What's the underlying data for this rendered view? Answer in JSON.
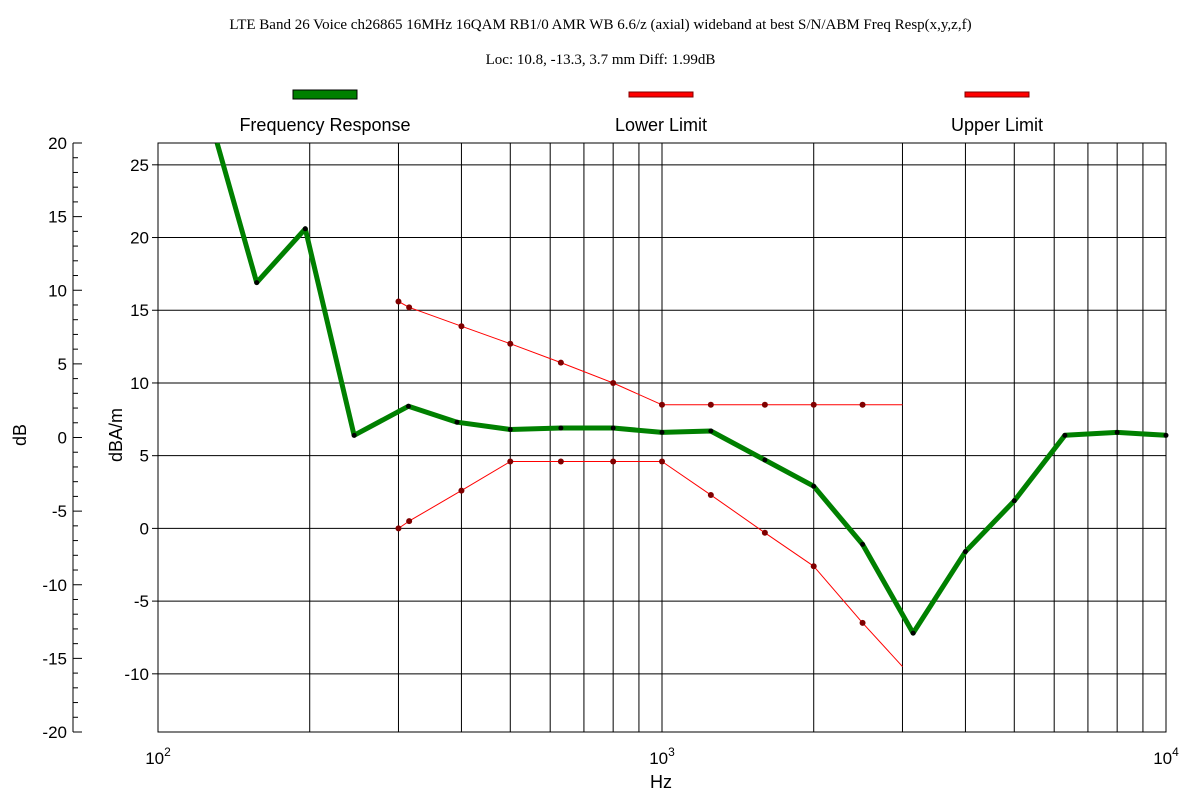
{
  "chart_data": {
    "type": "line",
    "title": "LTE Band 26 Voice ch26865 16MHz 16QAM RB1/0 AMR WB 6.6/z (axial) wideband at best S/N/ABM Freq Resp(x,y,z,f)",
    "subtitle": "Loc: 10.8, -13.3, 3.7 mm Diff: 1.99dB",
    "xlabel": "Hz",
    "ylabel_outer": "dB",
    "ylabel_inner": "dBA/m",
    "x_scale": "log",
    "xlim": [
      100,
      10000
    ],
    "ylim_outer": [
      -20,
      20
    ],
    "ylim_inner": [
      -14,
      26.5
    ],
    "x_tick_labels": [
      {
        "value": 100,
        "base": "10",
        "exp": "2"
      },
      {
        "value": 1000,
        "base": "10",
        "exp": "3"
      },
      {
        "value": 10000,
        "base": "10",
        "exp": "4"
      }
    ],
    "outer_ticks": [
      20,
      15,
      10,
      5,
      0,
      -5,
      -10,
      -15,
      -20
    ],
    "inner_ticks": [
      25,
      20,
      15,
      10,
      5,
      0,
      -5,
      -10
    ],
    "grid": true,
    "legend_position": "top",
    "series": [
      {
        "name": "Frequency Response",
        "color": "#008000",
        "width": 5,
        "markers": false,
        "x": [
          131,
          157,
          196,
          245,
          314,
          392,
          500,
          630,
          800,
          1000,
          1250,
          1600,
          2000,
          2500,
          3150,
          4000,
          5000,
          6300,
          8000,
          10000
        ],
        "y": [
          26.5,
          16.9,
          20.6,
          6.4,
          8.4,
          7.3,
          6.8,
          6.9,
          6.9,
          6.6,
          6.7,
          4.7,
          2.9,
          -1.1,
          -7.2,
          -1.6,
          1.9,
          6.4,
          6.6,
          6.4
        ]
      },
      {
        "name": "Lower Limit",
        "color": "#ff0000",
        "width": 1,
        "markers": true,
        "x": [
          300,
          315,
          400,
          500,
          630,
          800,
          1000,
          1250,
          1600,
          2000,
          2500,
          3000
        ],
        "y": [
          0.0,
          0.5,
          2.6,
          4.6,
          4.6,
          4.6,
          4.6,
          2.3,
          -0.3,
          -2.6,
          -6.5,
          -9.5
        ]
      },
      {
        "name": "Upper Limit",
        "color": "#ff0000",
        "width": 1,
        "markers": true,
        "x": [
          300,
          315,
          400,
          500,
          630,
          800,
          1000,
          1250,
          1600,
          2000,
          2500,
          3000
        ],
        "y": [
          15.6,
          15.2,
          13.9,
          12.7,
          11.4,
          10.0,
          8.5,
          8.5,
          8.5,
          8.5,
          8.5,
          8.5
        ]
      }
    ]
  }
}
